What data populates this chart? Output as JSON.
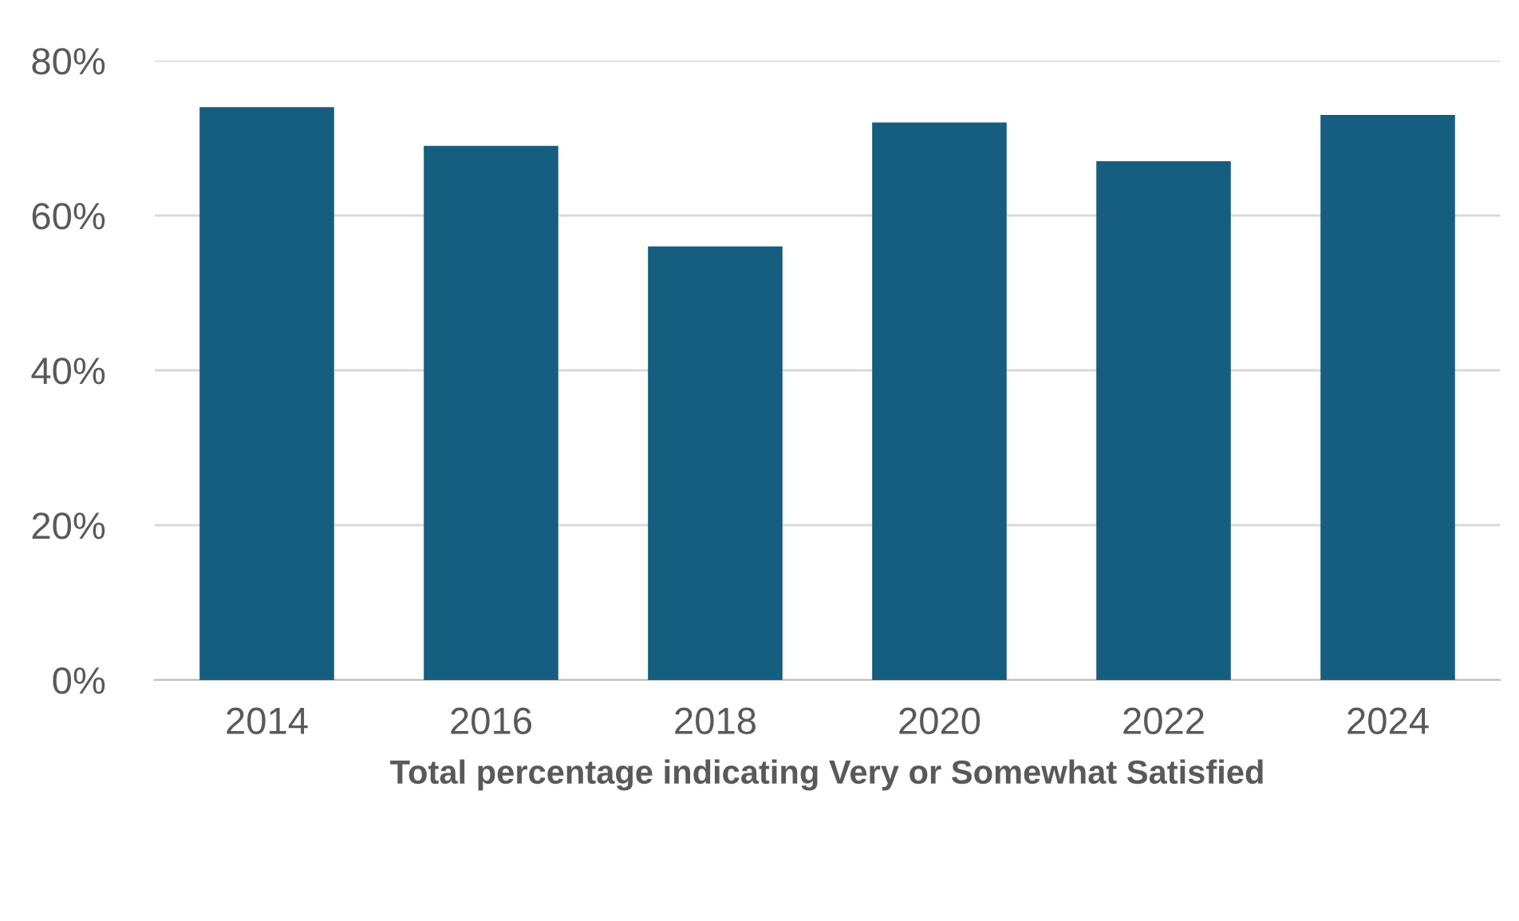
{
  "chart_data": {
    "type": "bar",
    "xlabel": "Total percentage indicating Very or Somewhat Satisfied",
    "categories": [
      "2014",
      "2016",
      "2018",
      "2020",
      "2022",
      "2024"
    ],
    "values": [
      74,
      69,
      56,
      72,
      67,
      73
    ],
    "color": "#165e7f",
    "ylim": [
      0,
      80
    ],
    "yticks": [
      {
        "value": 0,
        "label": "0%"
      },
      {
        "value": 20,
        "label": "20%"
      },
      {
        "value": 40,
        "label": "40%"
      },
      {
        "value": 60,
        "label": "60%"
      },
      {
        "value": 80,
        "label": "80%"
      }
    ],
    "grid": "y"
  }
}
